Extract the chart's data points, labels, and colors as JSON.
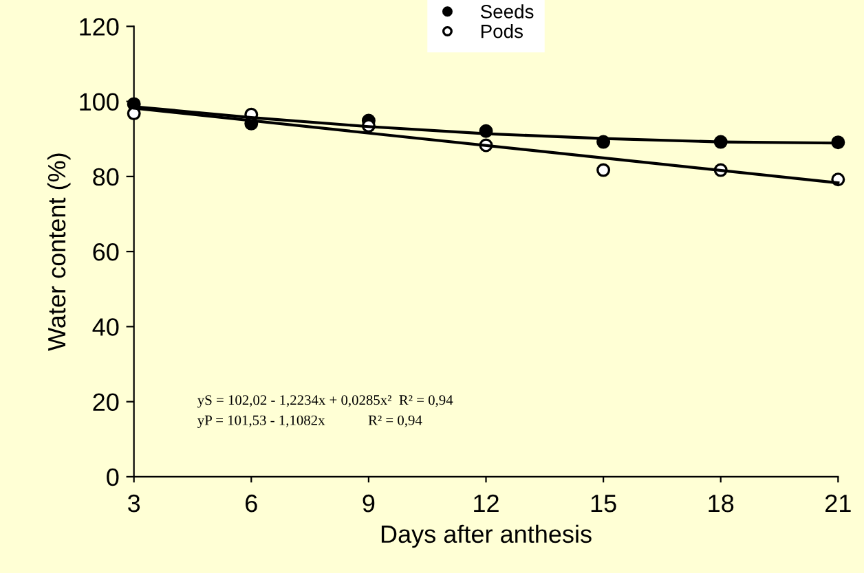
{
  "chart_data": {
    "type": "scatter",
    "xlabel": "Days after anthesis",
    "ylabel": "Water content (%)",
    "x": [
      3,
      6,
      9,
      12,
      15,
      18,
      21
    ],
    "series": [
      {
        "name": "Seeds",
        "color": "#000000",
        "marker": "circle",
        "values": [
          99.3,
          94.1,
          94.9,
          92.1,
          89.2,
          89.2,
          89.1
        ]
      },
      {
        "name": "Pods",
        "color": "#ffffff",
        "marker": "circle",
        "values": [
          96.8,
          96.5,
          93.5,
          88.3,
          81.7,
          81.7,
          79.2
        ]
      },
      {
        "type": "line",
        "color": "#000000",
        "marker": "none",
        "line_style": "solid",
        "x": [
          3,
          6,
          9,
          12,
          15,
          18,
          21
        ],
        "values": [
          98.6,
          95.7,
          93.3,
          91.4,
          90.1,
          89.2,
          88.9
        ]
      },
      {
        "type": "line",
        "color": "#000000",
        "marker": "none",
        "line_style": "solid",
        "x": [
          3,
          21
        ],
        "values": [
          98.2,
          78.3
        ]
      }
    ],
    "xlim": [
      3,
      21
    ],
    "xticks": [
      3,
      6,
      9,
      12,
      15,
      18,
      21
    ],
    "ylim": [
      0,
      120
    ],
    "yticks": [
      0,
      20,
      40,
      60,
      80,
      100,
      120
    ],
    "grid": false,
    "legend": "top",
    "annotations": [
      "yS = 102,02 - 1,2234x + 0,0285x²  R² = 0,94",
      "yP = 101,53 - 1,1082x            R² = 0,94"
    ]
  }
}
